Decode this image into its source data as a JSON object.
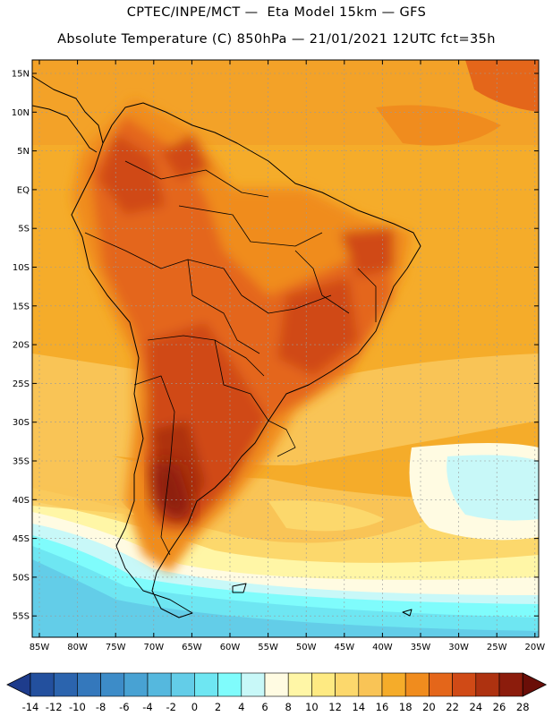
{
  "header": {
    "line1": "CPTEC/INPE/MCT —  Eta Model 15km — GFS",
    "line2": "Absolute Temperature (C) 850hPa — 21/01/2021 12UTC fct=35h"
  },
  "map": {
    "lat_labels": [
      "15N",
      "10N",
      "5N",
      "EQ",
      "5S",
      "10S",
      "15S",
      "20S",
      "25S",
      "30S",
      "35S",
      "40S",
      "45S",
      "50S",
      "55S"
    ],
    "lon_labels": [
      "85W",
      "80W",
      "75W",
      "70W",
      "65W",
      "60W",
      "55W",
      "50W",
      "45W",
      "40W",
      "35W",
      "30W",
      "25W",
      "20W"
    ],
    "colorbar_labels": [
      "-14",
      "-12",
      "-10",
      "-8",
      "-6",
      "-4",
      "-2",
      "0",
      "2",
      "4",
      "6",
      "8",
      "10",
      "12",
      "14",
      "16",
      "18",
      "20",
      "22",
      "24",
      "26",
      "28"
    ],
    "colorbar_colors": [
      "#1e3c8c",
      "#23509e",
      "#2b64ae",
      "#3478bc",
      "#3d8cc8",
      "#48a2d3",
      "#55b8de",
      "#63cde8",
      "#6ee6f2",
      "#7ffcfc",
      "#c8f8f8",
      "#fffbe2",
      "#fff6a6",
      "#feea82",
      "#fcd86c",
      "#f9c456",
      "#f5ac2a",
      "#f08c1e",
      "#e4661a",
      "#d04a16",
      "#ae3210",
      "#8c1c0c",
      "#6a0e08"
    ]
  }
}
